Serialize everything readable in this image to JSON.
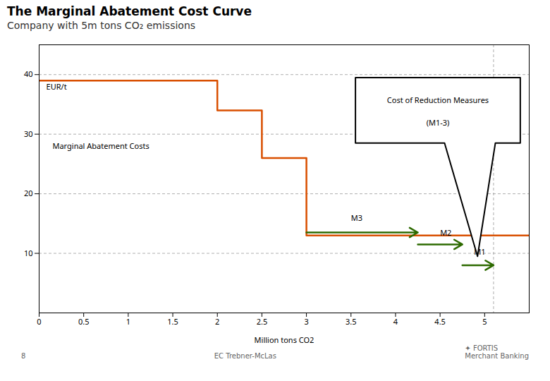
{
  "chart_data": {
    "type": "line",
    "title": "The Marginal Abatement Cost Curve",
    "subtitle": "Company with 5m tons CO₂ emissions",
    "xlabel": "Million tons CO2",
    "x": [
      0,
      2,
      2,
      2.5,
      2.5,
      3,
      3,
      5.5
    ],
    "values": [
      39,
      39,
      34,
      34,
      26,
      26,
      13,
      13
    ],
    "color": "#d94f00",
    "xlim": [
      0,
      5.5
    ],
    "ylim": [
      0,
      45
    ],
    "xticks": [
      0,
      0.5,
      1,
      1.5,
      2,
      2.5,
      3,
      3.5,
      4,
      4.5,
      5
    ],
    "yticks": [
      10,
      20,
      30,
      40
    ],
    "grid": true,
    "vline": 5.1,
    "measures": [
      {
        "name": "M3",
        "x1": 3.0,
        "x2": 4.25,
        "y": 13.5,
        "label_x": 3.5,
        "label_y": 15.5
      },
      {
        "name": "M2",
        "x1": 4.25,
        "x2": 4.75,
        "y": 11.5,
        "label_x": 4.5,
        "label_y": 13.0
      },
      {
        "name": "M1",
        "x1": 4.75,
        "x2": 5.1,
        "y": 8.0,
        "label_x": 4.88,
        "label_y": 9.8
      }
    ],
    "measure_color": "#2d6a00",
    "annotations": [
      {
        "text": "EUR/t",
        "x": 0.08,
        "y": 37.5
      },
      {
        "text": "Marginal Abatement Costs",
        "x": 0.15,
        "y": 27.5
      }
    ],
    "callout": {
      "texts": [
        "Cost of Reduction Measures",
        "(M1-3)"
      ],
      "points": [
        [
          3.55,
          39.5
        ],
        [
          5.4,
          39.5
        ],
        [
          5.4,
          28.5
        ],
        [
          5.12,
          28.5
        ],
        [
          4.92,
          9.5
        ],
        [
          4.55,
          28.5
        ],
        [
          3.55,
          28.5
        ],
        [
          3.55,
          39.5
        ]
      ]
    },
    "footer": [
      "8",
      "EC Trebner-McLas",
      "✦ FORTIS\nMerchant Banking"
    ]
  }
}
